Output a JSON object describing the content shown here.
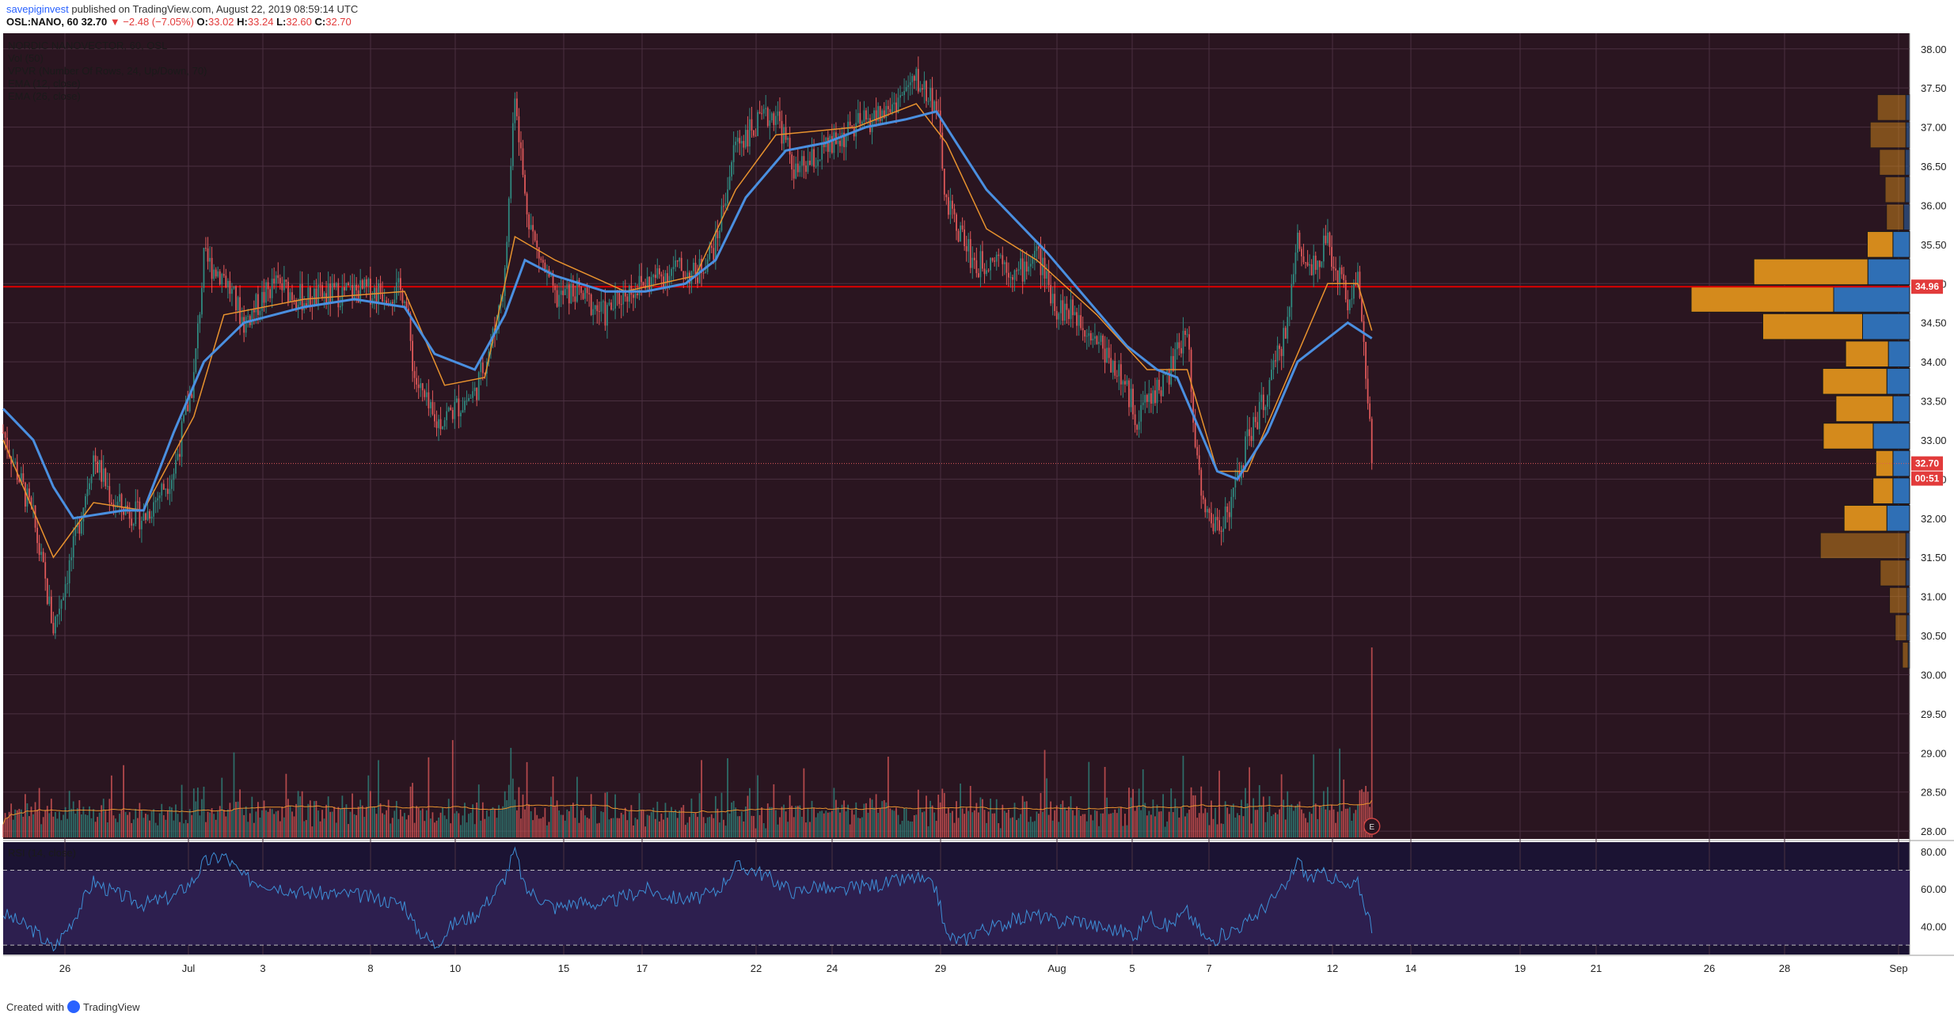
{
  "header": {
    "publisher": "savepiginvest",
    "published_text": "published on TradingView.com, August 22, 2019 08:59:14 UTC",
    "symbol": "OSL:NANO, 60",
    "last": "32.70",
    "change": "▼ −2.48 (−7.05%)",
    "o_label": "O:",
    "o": "33.02",
    "h_label": "H:",
    "h": "33.24",
    "l_label": "L:",
    "l": "32.60",
    "c_label": "C:",
    "c": "32.70"
  },
  "legend": {
    "title": "NORDIC NANOVECTOR, 60, OSL",
    "vol": "Vol (50)",
    "vpvr": "VPVR (Number Of Rows, 24, Up/Down, 70)",
    "ema12": "EMA (12, close)",
    "ema26": "EMA (26, close)",
    "rsi": "RSI (14, close)"
  },
  "footer": {
    "created_with": "Created with",
    "brand": "TradingView"
  },
  "colors": {
    "background": "#2a1520",
    "rsi_background": "#1b1333",
    "rsi_band": "#2d1f4f",
    "grid": "#4a3040",
    "up": "#2f8a80",
    "down": "#e0595a",
    "ema12": "#e8922e",
    "ema26": "#4a8fe0",
    "resistance_line": "#e00000",
    "vpvr_up": "#2f6fb5",
    "vpvr_down": "#d48a1c",
    "price_label_bg": "#e23b3b"
  },
  "chart_data": [
    {
      "type": "candlestick",
      "title": "NORDIC NANOVECTOR, 60, OSL",
      "x_tick_labels": [
        "26",
        "Jul",
        "3",
        "8",
        "10",
        "15",
        "17",
        "22",
        "24",
        "29",
        "Aug",
        "5",
        "7",
        "12",
        "14",
        "19",
        "21",
        "26",
        "28",
        "Sep"
      ],
      "y_tick_labels": [
        "28.00",
        "28.50",
        "29.00",
        "29.50",
        "30.00",
        "30.50",
        "31.00",
        "31.50",
        "32.00",
        "32.50",
        "33.00",
        "33.50",
        "34.00",
        "34.50",
        "35.00",
        "35.50",
        "36.00",
        "36.50",
        "37.00",
        "37.50",
        "38.00"
      ],
      "ylim": [
        27.9,
        38.2
      ],
      "horizontal_line": 34.96,
      "horizontal_line_label": "34.96",
      "last_price_label": "32.70",
      "countdown_label": "00:51",
      "event_marker": "E",
      "close_path": [
        [
          0,
          33.1
        ],
        [
          15,
          32.0
        ],
        [
          25,
          30.6
        ],
        [
          35,
          31.6
        ],
        [
          45,
          32.8
        ],
        [
          55,
          32.2
        ],
        [
          70,
          32.0
        ],
        [
          85,
          32.6
        ],
        [
          95,
          33.8
        ],
        [
          100,
          35.3
        ],
        [
          110,
          35.1
        ],
        [
          120,
          34.5
        ],
        [
          135,
          35.0
        ],
        [
          150,
          34.8
        ],
        [
          175,
          34.9
        ],
        [
          200,
          34.9
        ],
        [
          205,
          33.8
        ],
        [
          215,
          33.2
        ],
        [
          225,
          33.4
        ],
        [
          235,
          33.6
        ],
        [
          245,
          34.4
        ],
        [
          250,
          35.1
        ],
        [
          255,
          37.5
        ],
        [
          260,
          36.1
        ],
        [
          265,
          35.5
        ],
        [
          275,
          34.8
        ],
        [
          285,
          34.9
        ],
        [
          300,
          34.6
        ],
        [
          310,
          34.9
        ],
        [
          320,
          35.0
        ],
        [
          335,
          35.2
        ],
        [
          345,
          35.1
        ],
        [
          355,
          35.5
        ],
        [
          365,
          36.8
        ],
        [
          375,
          37.0
        ],
        [
          385,
          37.2
        ],
        [
          395,
          36.4
        ],
        [
          405,
          36.6
        ],
        [
          415,
          36.8
        ],
        [
          425,
          37.0
        ],
        [
          440,
          37.2
        ],
        [
          455,
          37.6
        ],
        [
          465,
          37.3
        ],
        [
          470,
          36.0
        ],
        [
          478,
          35.6
        ],
        [
          485,
          35.2
        ],
        [
          495,
          35.4
        ],
        [
          505,
          35.1
        ],
        [
          515,
          35.4
        ],
        [
          525,
          34.7
        ],
        [
          535,
          34.6
        ],
        [
          545,
          34.3
        ],
        [
          555,
          33.9
        ],
        [
          565,
          33.3
        ],
        [
          570,
          33.5
        ],
        [
          580,
          33.8
        ],
        [
          590,
          34.4
        ],
        [
          595,
          32.7
        ],
        [
          600,
          32.0
        ],
        [
          605,
          31.9
        ],
        [
          612,
          32.2
        ],
        [
          620,
          33.0
        ],
        [
          630,
          33.6
        ],
        [
          640,
          34.5
        ],
        [
          645,
          35.6
        ],
        [
          650,
          35.2
        ],
        [
          660,
          35.5
        ],
        [
          670,
          34.8
        ],
        [
          675,
          35.1
        ],
        [
          682,
          32.9
        ]
      ],
      "ema12_path": [
        [
          0,
          33.0
        ],
        [
          25,
          31.5
        ],
        [
          45,
          32.2
        ],
        [
          70,
          32.1
        ],
        [
          95,
          33.3
        ],
        [
          110,
          34.6
        ],
        [
          150,
          34.8
        ],
        [
          200,
          34.9
        ],
        [
          220,
          33.7
        ],
        [
          240,
          33.8
        ],
        [
          255,
          35.6
        ],
        [
          275,
          35.3
        ],
        [
          310,
          34.9
        ],
        [
          345,
          35.1
        ],
        [
          365,
          36.2
        ],
        [
          385,
          36.9
        ],
        [
          425,
          37.0
        ],
        [
          455,
          37.3
        ],
        [
          470,
          36.8
        ],
        [
          490,
          35.7
        ],
        [
          515,
          35.3
        ],
        [
          545,
          34.6
        ],
        [
          570,
          33.9
        ],
        [
          590,
          33.9
        ],
        [
          605,
          32.6
        ],
        [
          620,
          32.6
        ],
        [
          640,
          33.8
        ],
        [
          660,
          35.0
        ],
        [
          675,
          35.0
        ],
        [
          682,
          34.4
        ]
      ],
      "ema26_path": [
        [
          0,
          33.4
        ],
        [
          15,
          33.0
        ],
        [
          25,
          32.4
        ],
        [
          35,
          32.0
        ],
        [
          60,
          32.1
        ],
        [
          70,
          32.1
        ],
        [
          85,
          33.1
        ],
        [
          100,
          34.0
        ],
        [
          120,
          34.5
        ],
        [
          150,
          34.7
        ],
        [
          175,
          34.8
        ],
        [
          200,
          34.7
        ],
        [
          215,
          34.1
        ],
        [
          235,
          33.9
        ],
        [
          250,
          34.6
        ],
        [
          260,
          35.3
        ],
        [
          275,
          35.1
        ],
        [
          300,
          34.9
        ],
        [
          320,
          34.9
        ],
        [
          340,
          35.0
        ],
        [
          355,
          35.3
        ],
        [
          370,
          36.1
        ],
        [
          390,
          36.7
        ],
        [
          410,
          36.8
        ],
        [
          430,
          37.0
        ],
        [
          450,
          37.1
        ],
        [
          465,
          37.2
        ],
        [
          475,
          36.8
        ],
        [
          490,
          36.2
        ],
        [
          505,
          35.8
        ],
        [
          520,
          35.4
        ],
        [
          540,
          34.8
        ],
        [
          560,
          34.2
        ],
        [
          575,
          33.9
        ],
        [
          585,
          33.8
        ],
        [
          595,
          33.2
        ],
        [
          605,
          32.6
        ],
        [
          615,
          32.5
        ],
        [
          630,
          33.1
        ],
        [
          645,
          34.0
        ],
        [
          660,
          34.3
        ],
        [
          670,
          34.5
        ],
        [
          682,
          34.3
        ]
      ],
      "vpvr_rows": [
        {
          "price": 37.25,
          "up": 0.05,
          "down": 0.2
        },
        {
          "price": 36.9,
          "up": 0.05,
          "down": 0.25
        },
        {
          "price": 36.55,
          "up": 0.06,
          "down": 0.18
        },
        {
          "price": 36.2,
          "up": 0.06,
          "down": 0.14
        },
        {
          "price": 35.85,
          "up": 0.08,
          "down": 0.12
        },
        {
          "price": 35.5,
          "up": 0.22,
          "down": 0.18
        },
        {
          "price": 35.15,
          "up": 0.55,
          "down": 0.8
        },
        {
          "price": 34.8,
          "up": 1.0,
          "down": 1.0
        },
        {
          "price": 34.45,
          "up": 0.62,
          "down": 0.7
        },
        {
          "price": 34.1,
          "up": 0.28,
          "down": 0.3
        },
        {
          "price": 33.75,
          "up": 0.3,
          "down": 0.45
        },
        {
          "price": 33.4,
          "up": 0.22,
          "down": 0.4
        },
        {
          "price": 33.05,
          "up": 0.48,
          "down": 0.35
        },
        {
          "price": 32.7,
          "up": 0.22,
          "down": 0.12
        },
        {
          "price": 32.35,
          "up": 0.22,
          "down": 0.14
        },
        {
          "price": 32.0,
          "up": 0.3,
          "down": 0.3
        },
        {
          "price": 31.65,
          "up": 0.05,
          "down": 0.6
        },
        {
          "price": 31.3,
          "up": 0.05,
          "down": 0.18
        },
        {
          "price": 30.95,
          "up": 0.04,
          "down": 0.12
        },
        {
          "price": 30.6,
          "up": 0.04,
          "down": 0.08
        },
        {
          "price": 30.25,
          "up": 0.02,
          "down": 0.04
        }
      ]
    },
    {
      "type": "line",
      "title": "RSI (14, close)",
      "y_tick_labels": [
        "40.00",
        "60.00",
        "80.00"
      ],
      "ylim": [
        25,
        85
      ],
      "bands": [
        30,
        70
      ],
      "rsi_path": [
        [
          0,
          47
        ],
        [
          15,
          38
        ],
        [
          25,
          28
        ],
        [
          35,
          44
        ],
        [
          45,
          64
        ],
        [
          55,
          58
        ],
        [
          70,
          52
        ],
        [
          85,
          56
        ],
        [
          95,
          65
        ],
        [
          100,
          74
        ],
        [
          110,
          78
        ],
        [
          120,
          66
        ],
        [
          135,
          62
        ],
        [
          150,
          58
        ],
        [
          175,
          57
        ],
        [
          200,
          52
        ],
        [
          205,
          40
        ],
        [
          215,
          30
        ],
        [
          225,
          42
        ],
        [
          235,
          46
        ],
        [
          245,
          58
        ],
        [
          250,
          66
        ],
        [
          255,
          81
        ],
        [
          260,
          60
        ],
        [
          265,
          57
        ],
        [
          275,
          50
        ],
        [
          285,
          53
        ],
        [
          300,
          52
        ],
        [
          310,
          56
        ],
        [
          320,
          60
        ],
        [
          335,
          55
        ],
        [
          345,
          55
        ],
        [
          355,
          58
        ],
        [
          365,
          72
        ],
        [
          375,
          70
        ],
        [
          385,
          64
        ],
        [
          395,
          58
        ],
        [
          405,
          62
        ],
        [
          415,
          58
        ],
        [
          425,
          61
        ],
        [
          440,
          63
        ],
        [
          455,
          66
        ],
        [
          465,
          60
        ],
        [
          470,
          35
        ],
        [
          478,
          32
        ],
        [
          485,
          38
        ],
        [
          495,
          40
        ],
        [
          505,
          44
        ],
        [
          515,
          46
        ],
        [
          525,
          42
        ],
        [
          535,
          44
        ],
        [
          545,
          40
        ],
        [
          555,
          38
        ],
        [
          565,
          36
        ],
        [
          570,
          46
        ],
        [
          580,
          40
        ],
        [
          590,
          48
        ],
        [
          595,
          40
        ],
        [
          600,
          32
        ],
        [
          605,
          34
        ],
        [
          612,
          38
        ],
        [
          620,
          42
        ],
        [
          630,
          52
        ],
        [
          640,
          62
        ],
        [
          645,
          76
        ],
        [
          650,
          66
        ],
        [
          660,
          68
        ],
        [
          670,
          60
        ],
        [
          675,
          63
        ],
        [
          682,
          40
        ]
      ]
    }
  ]
}
